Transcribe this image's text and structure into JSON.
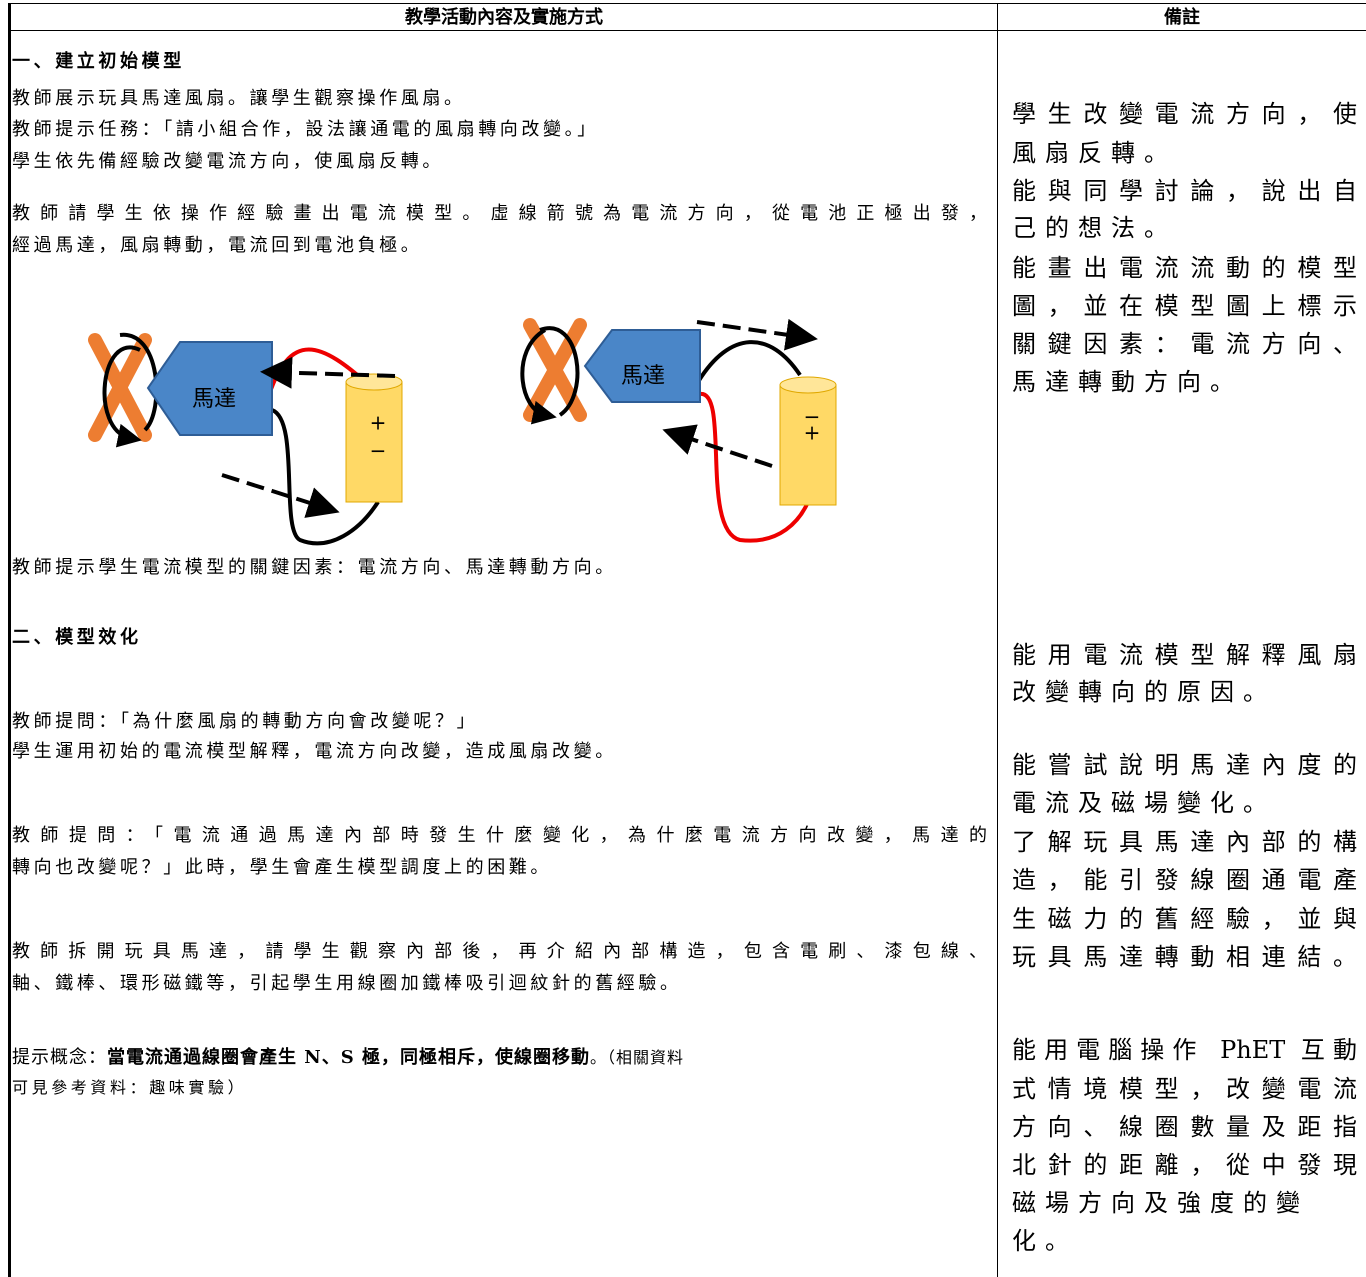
{
  "table": {
    "header": [
      "教學活動內容及實施方式",
      "備註"
    ],
    "left": {
      "heading1": "一、建立初始模型",
      "lines1": [
        "教師展示玩具馬達風扇。讓學生觀察操作風扇。",
        "教師提示任務：「請小組合作，設法讓通電的風扇轉向改變。」",
        "學生依先備經驗改變電流方向，使風扇反轉。",
        "教師請學生依操作經驗畫出電流模型。虛線箭號為電流方向，從電池正極出發，",
        "經過馬達，風扇轉動，電流回到電池負極。"
      ],
      "diagram": {
        "motor_label": "馬達",
        "battery_left": [
          "+",
          "−"
        ],
        "battery_right": [
          "−",
          "+"
        ]
      },
      "line_after_diagram": "教師提示學生電流模型的關鍵因素：電流方向、馬達轉動方向。",
      "heading2": "二、模型效化",
      "lines2": [
        "教師提問：「為什麼風扇的轉動方向會改變呢？」",
        "學生運用初始的電流模型解釋，電流方向改變，造成風扇改變。",
        "教師提問：「電流通過馬達內部時發生什麼變化，為什麼電流方向改變，馬達的",
        "轉向也改變呢？」此時，學生會產生模型調度上的困難。",
        "教師拆開玩具馬達，請學生觀察內部後，再介紹內部構造，包含電刷、漆包線、",
        "軸、鐵棒、環形磁鐵等，引起學生用線圈加鐵棒吸引迴紋針的舊經驗。"
      ],
      "hint": {
        "prefix": "提示概念：",
        "bold": "當電流通過線圈會產生 N、S 極，同極相斥，使線圈移動",
        "suffix": "。（相關資料",
        "line2": "可見參考資料：趣味實驗）"
      }
    },
    "notes": [
      [
        "學生改變電流方向，使",
        "風扇反轉。",
        "能與同學討論，說出自",
        "己的想法。",
        "能畫出電流流動的模型",
        "圖，並在模型圖上標示",
        "關鍵因素：電流方向、",
        "馬達轉動方向。"
      ],
      [
        "能用電流模型解釋風扇",
        "改變轉向的原因。"
      ],
      [
        "能嘗試說明馬達內度的",
        "電流及磁場變化。",
        "了解玩具馬達內部的構",
        "造，能引發線圈通電產",
        "生磁力的舊經驗，並與",
        "玩具馬達轉動相連結。"
      ],
      [
        "能用電腦操作 PhET 互動",
        "式情境模型，改變電流",
        "方向、線圈數量及距指",
        "北針的距離，從中發現",
        "磁場方向及強度的變",
        "化。"
      ]
    ]
  }
}
